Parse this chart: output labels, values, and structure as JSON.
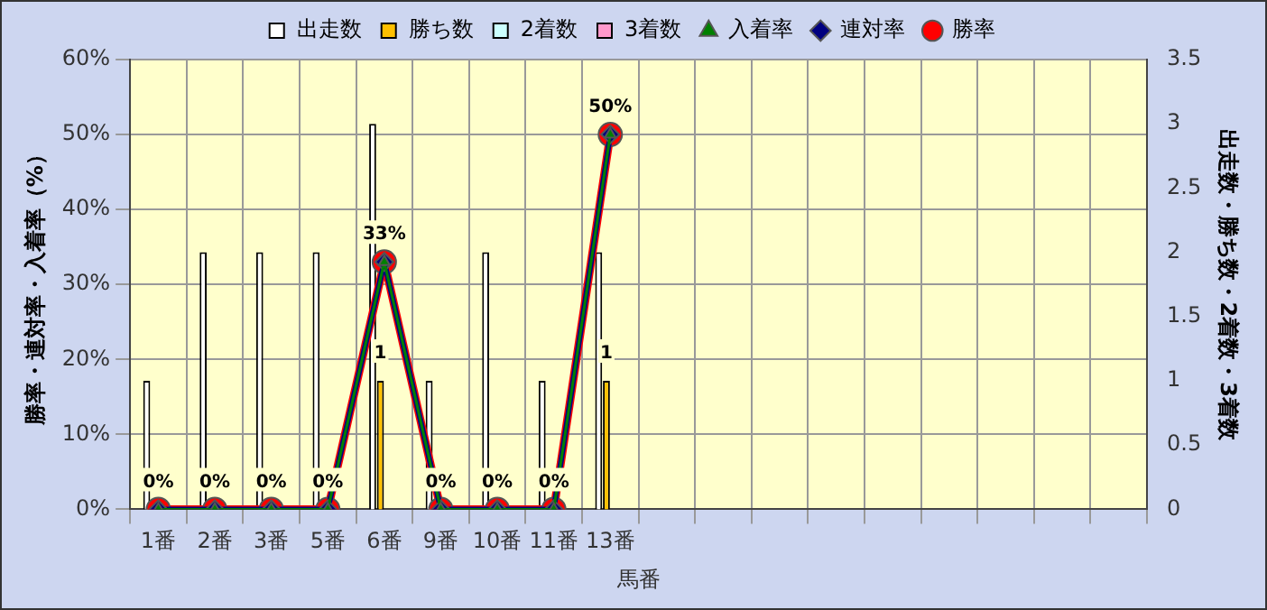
{
  "chart_data": {
    "type": "bar",
    "xlabel": "馬番",
    "ylabel": "勝率・連対率・入着率（%）",
    "y2label": "出走数・勝ち数・2着数・3着数",
    "categories": [
      "1番",
      "2番",
      "3番",
      "5番",
      "6番",
      "9番",
      "10番",
      "11番",
      "13番",
      null,
      null,
      null,
      null,
      null,
      null,
      null,
      null,
      null
    ],
    "series": [
      {
        "name": "出走数",
        "type": "bar",
        "axis": "y2",
        "color": "#ffffff",
        "values": [
          1,
          2,
          2,
          2,
          3,
          1,
          2,
          1,
          2,
          null,
          null,
          null,
          null,
          null,
          null,
          null,
          null,
          null
        ]
      },
      {
        "name": "勝ち数",
        "type": "bar",
        "axis": "y2",
        "color": "#ffc000",
        "values": [
          0,
          0,
          0,
          0,
          1,
          0,
          0,
          0,
          1,
          null,
          null,
          null,
          null,
          null,
          null,
          null,
          null,
          null
        ],
        "value_labels": [
          null,
          null,
          null,
          null,
          "1",
          null,
          null,
          null,
          "1",
          null,
          null,
          null,
          null,
          null,
          null,
          null,
          null,
          null
        ]
      },
      {
        "name": "2着数",
        "type": "bar",
        "axis": "y2",
        "color": "#ccffff",
        "values": [
          0,
          0,
          0,
          0,
          0,
          0,
          0,
          0,
          0,
          null,
          null,
          null,
          null,
          null,
          null,
          null,
          null,
          null
        ]
      },
      {
        "name": "3着数",
        "type": "bar",
        "axis": "y2",
        "color": "#ff99cc",
        "values": [
          0,
          0,
          0,
          0,
          0,
          0,
          0,
          0,
          0,
          null,
          null,
          null,
          null,
          null,
          null,
          null,
          null,
          null
        ]
      },
      {
        "name": "入着率",
        "type": "line",
        "marker": "triangle",
        "color": "#008000",
        "values": [
          0,
          0,
          0,
          0,
          33,
          0,
          0,
          0,
          50,
          null,
          null,
          null,
          null,
          null,
          null,
          null,
          null,
          null
        ]
      },
      {
        "name": "連対率",
        "type": "line",
        "marker": "diamond",
        "color": "#000080",
        "values": [
          0,
          0,
          0,
          0,
          33,
          0,
          0,
          0,
          50,
          null,
          null,
          null,
          null,
          null,
          null,
          null,
          null,
          null
        ]
      },
      {
        "name": "勝率",
        "type": "line",
        "marker": "circle",
        "color": "#ff0000",
        "values": [
          0,
          0,
          0,
          0,
          33,
          0,
          0,
          0,
          50,
          null,
          null,
          null,
          null,
          null,
          null,
          null,
          null,
          null
        ],
        "value_labels": [
          "0%",
          "0%",
          "0%",
          "0%",
          "33%",
          "0%",
          "0%",
          "0%",
          "50%",
          null,
          null,
          null,
          null,
          null,
          null,
          null,
          null,
          null
        ]
      }
    ],
    "ylim": [
      0,
      60
    ],
    "yticks": [
      {
        "value": 0,
        "label": "0%"
      },
      {
        "value": 10,
        "label": "10%"
      },
      {
        "value": 20,
        "label": "20%"
      },
      {
        "value": 30,
        "label": "30%"
      },
      {
        "value": 40,
        "label": "40%"
      },
      {
        "value": 50,
        "label": "50%"
      },
      {
        "value": 60,
        "label": "60%"
      }
    ],
    "y2lim": [
      0,
      3.5
    ],
    "y2ticks": [
      0,
      0.5,
      1,
      1.5,
      2,
      2.5,
      3,
      3.5
    ],
    "grid": true,
    "legend": "top"
  }
}
